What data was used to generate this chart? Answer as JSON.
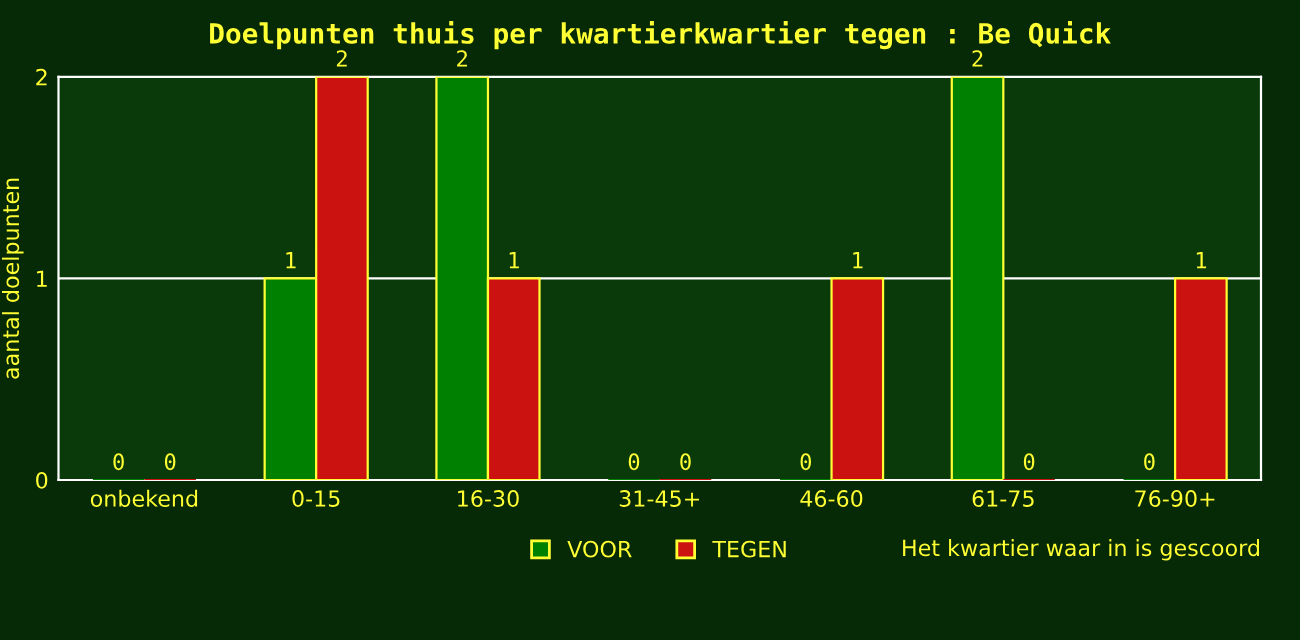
{
  "chart_data": {
    "type": "bar",
    "title": "Doelpunten thuis per kwartierkwartier tegen : Be Quick",
    "xlabel": "Het kwartier waar in is gescoord",
    "ylabel": "aantal doelpunten",
    "categories": [
      "onbekend",
      "0-15",
      "16-30",
      "31-45+",
      "46-60",
      "61-75",
      "76-90+"
    ],
    "series": [
      {
        "name": "VOOR",
        "color": "#008000",
        "values": [
          0,
          1,
          2,
          0,
          0,
          2,
          0
        ]
      },
      {
        "name": "TEGEN",
        "color": "#cc1111",
        "values": [
          0,
          2,
          1,
          0,
          1,
          0,
          1
        ]
      }
    ],
    "ylim": [
      0,
      2
    ],
    "yticks": [
      0,
      1,
      2
    ],
    "grid": "y",
    "legend": "bottom",
    "data_labels": true
  }
}
